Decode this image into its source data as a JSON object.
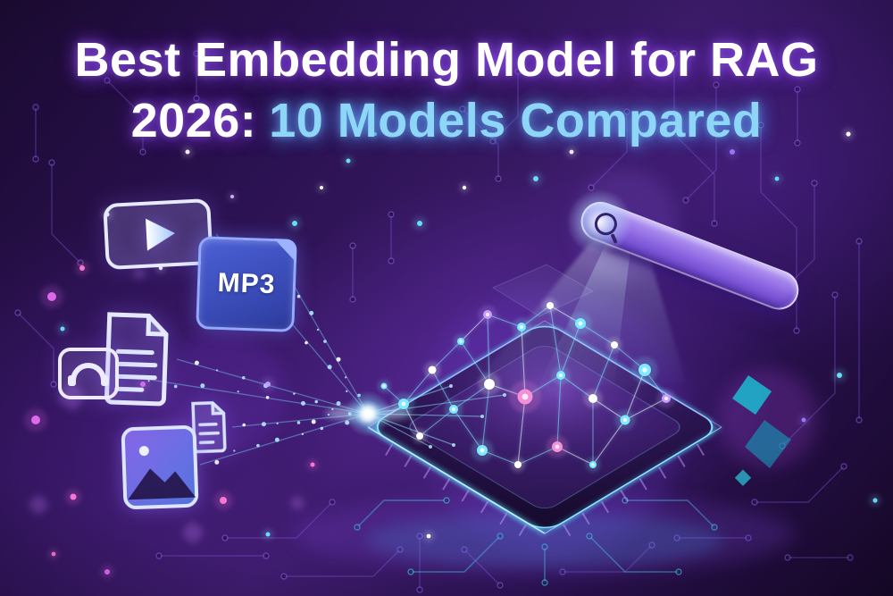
{
  "meta": {
    "description": "Hero illustration: multimedia file types streaming into a glowing AI embedding chip with a neural network, while a search bar projects a light beam onto it"
  },
  "title": {
    "line1": "Best Embedding Model for RAG",
    "line2_prefix": "2026:",
    "line2_highlight": "10 Models Compared"
  },
  "labels": {
    "mp3": "MP3"
  },
  "icons": [
    "video-play-icon",
    "mp3-file-icon",
    "document-icon",
    "phone-icon",
    "small-document-icon",
    "image-icon",
    "search-icon"
  ],
  "colors": {
    "background": "#2a1150",
    "title_text": "#ffffff",
    "title_highlight": "#8ed6f7",
    "accent_cyan": "#49e0ff",
    "accent_purple": "#8a5cf0",
    "accent_magenta": "#e66bf2",
    "mp3_tile": "#3c50c0",
    "search_bar": "#8a63e0",
    "chip": "#22104a",
    "teal_accent": "#19c4d8"
  }
}
